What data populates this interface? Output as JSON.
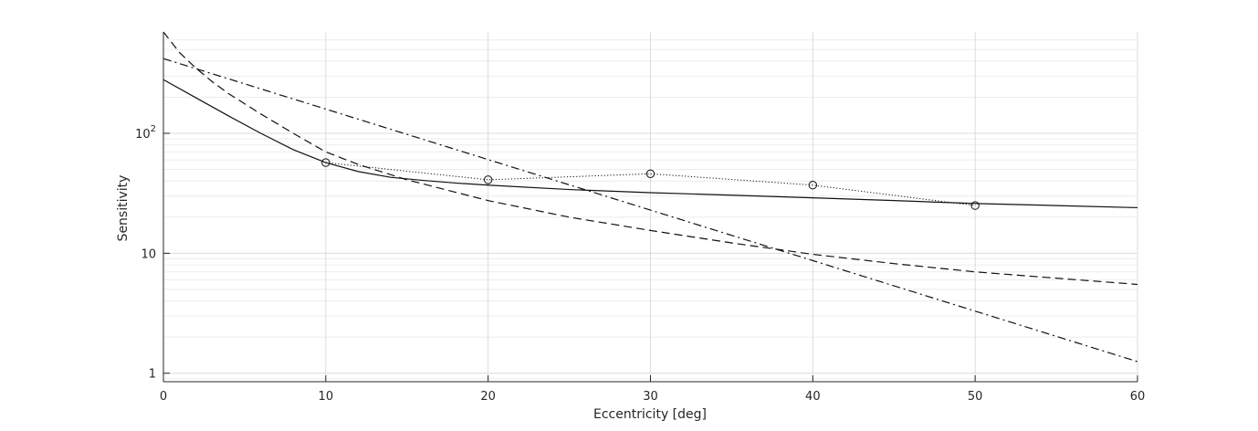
{
  "chart_data": {
    "type": "line",
    "title": "",
    "xlabel": "Eccentricity [deg]",
    "ylabel": "Sensitivity",
    "xlim": [
      0,
      60
    ],
    "ylim": [
      0.85,
      700
    ],
    "yscale": "log",
    "grid": true,
    "minor_grid": true,
    "x_ticks": [
      0,
      10,
      20,
      30,
      40,
      50,
      60
    ],
    "x_tick_labels": [
      "0",
      "10",
      "20",
      "30",
      "40",
      "50",
      "60"
    ],
    "y_ticks": [
      1,
      10,
      100
    ],
    "y_tick_labels": [
      {
        "base": "1",
        "exp": ""
      },
      {
        "base": "10",
        "exp": ""
      },
      {
        "base": "10",
        "exp": "2"
      }
    ],
    "series": [
      {
        "style": "dotted",
        "marker": "circle",
        "x": [
          10,
          20,
          30,
          40,
          50
        ],
        "y": [
          57,
          41,
          46,
          37,
          25
        ]
      },
      {
        "style": "solid",
        "x": [
          0,
          2,
          4,
          6,
          8,
          10,
          12,
          14,
          16,
          18,
          20,
          25,
          30,
          35,
          40,
          45,
          50,
          55,
          60
        ],
        "y": [
          280,
          198,
          140,
          100,
          73,
          57,
          48,
          43,
          40.5,
          38.5,
          37,
          34,
          32,
          30.5,
          29,
          27.5,
          26,
          25,
          24
        ]
      },
      {
        "style": "dashed",
        "x": [
          0,
          1,
          2,
          3,
          4,
          6,
          8,
          10,
          12,
          15,
          20,
          25,
          30,
          35,
          40,
          45,
          50,
          55,
          60
        ],
        "y": [
          700,
          470,
          350,
          270,
          215,
          145,
          100,
          70,
          55,
          41,
          27.5,
          20,
          15.5,
          12.2,
          9.8,
          8.2,
          7.0,
          6.2,
          5.5
        ]
      },
      {
        "style": "dashdot",
        "x": [
          0,
          60
        ],
        "y": [
          420,
          1.25
        ]
      }
    ]
  }
}
